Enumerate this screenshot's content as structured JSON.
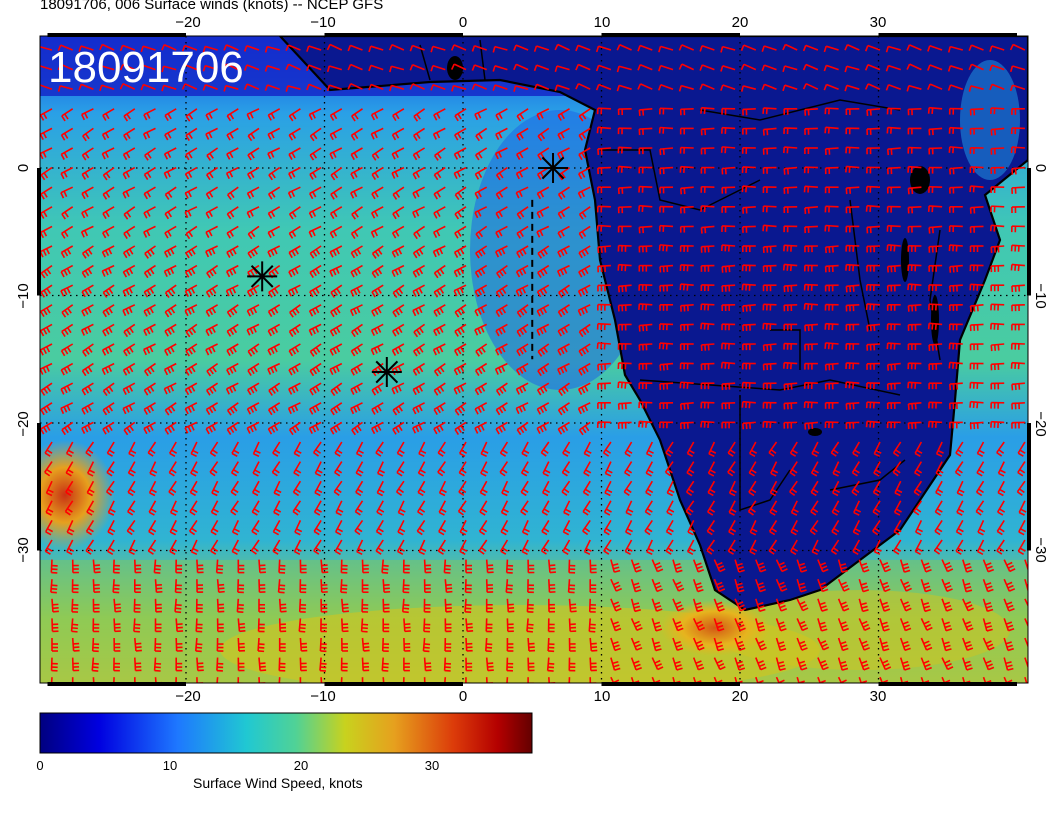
{
  "figure_title": "18091706, 006 Surface winds (knots) -- NCEP GFS",
  "map_stamp": "18091706",
  "colorbar": {
    "label": "Surface Wind Speed, knots",
    "ticks": [
      "0",
      "10",
      "20",
      "30"
    ],
    "range_knots": [
      0,
      38
    ],
    "colors": [
      "#000080",
      "#0000ff",
      "#1e90ff",
      "#20c8c8",
      "#5ad28c",
      "#d2d21e",
      "#e68c1e",
      "#c80000",
      "#780000"
    ]
  },
  "axes": {
    "longitude_ticks_top": [
      "−20",
      "−10",
      "0",
      "10",
      "20",
      "30"
    ],
    "longitude_ticks_bottom": [
      "−20",
      "−10",
      "0",
      "10",
      "20",
      "30"
    ],
    "latitude_ticks_left": [
      "0",
      "−10",
      "−20",
      "−30"
    ],
    "latitude_ticks_right": [
      "0",
      "−10",
      "−20",
      "−30"
    ],
    "lon_range": [
      -30,
      41
    ],
    "lat_range": [
      -40,
      10
    ],
    "gridlines": "dotted, every 10 degrees"
  },
  "markers": {
    "asterisks": [
      {
        "lon": 6.5,
        "lat": 0.0
      },
      {
        "lon": -14.5,
        "lat": -8.5
      },
      {
        "lon": -5.5,
        "lat": -16.0
      }
    ],
    "dashed_line": {
      "lon": 5.0,
      "lat_from": -2.5,
      "lat_to": -15.0
    }
  },
  "colors": {
    "barbs": "#ff0000",
    "land_low_wind": "#0a1890",
    "ocean_trade_winds": "#40c8a0",
    "coastline": "#000000"
  },
  "map_content": "Surface wind speed shading with red wind barbs over the South Atlantic and southern Africa"
}
